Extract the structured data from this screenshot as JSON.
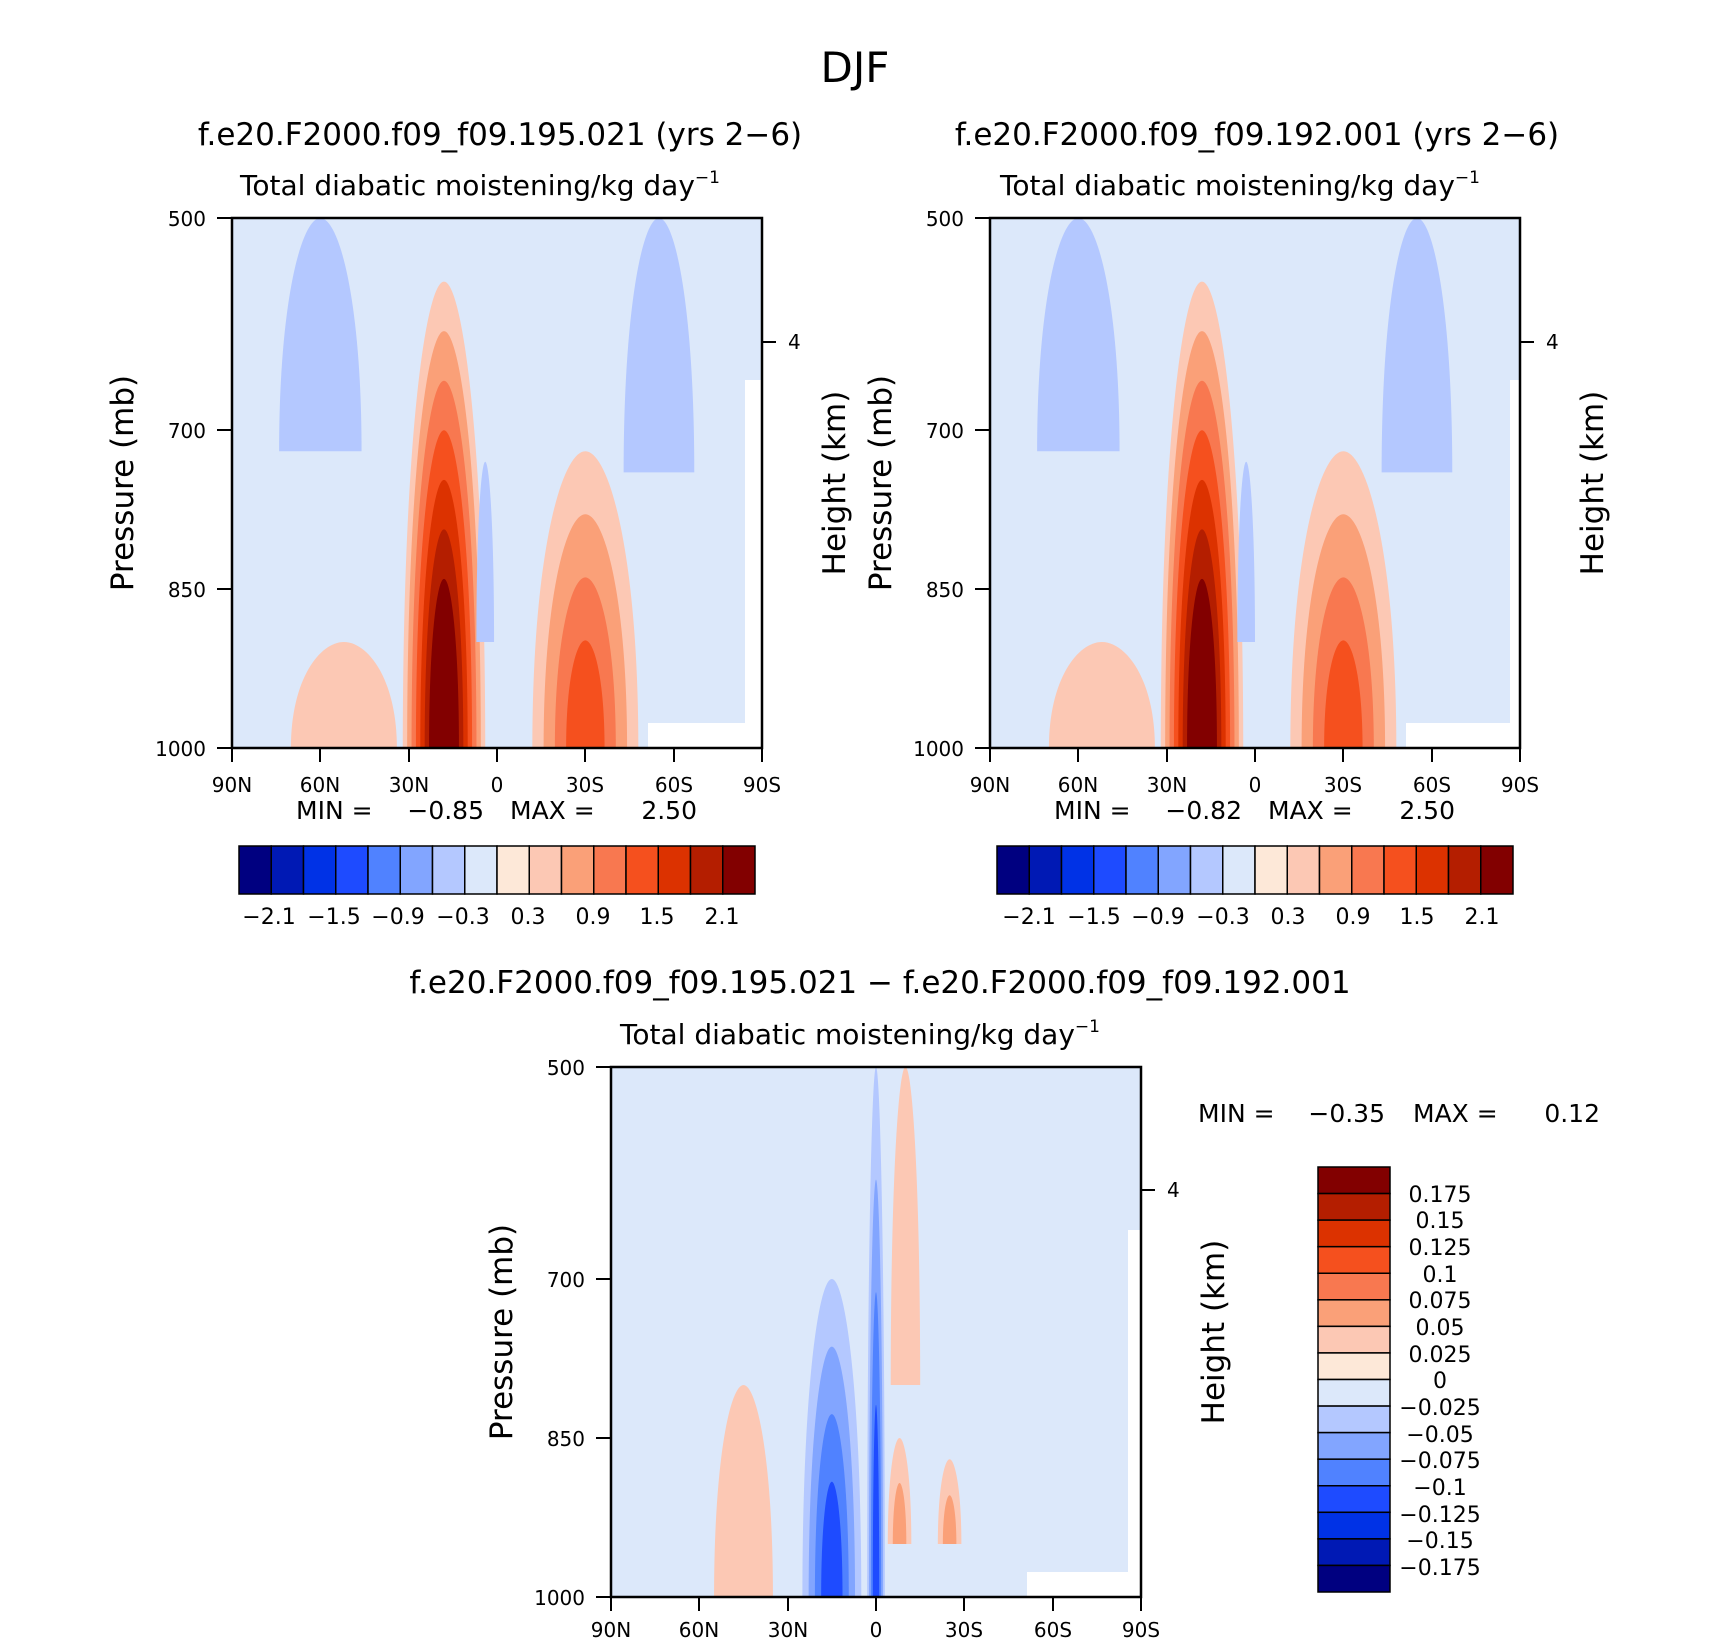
{
  "figure_title": "DJF",
  "minmax_labels": {
    "min": "MIN =",
    "max": "MAX ="
  },
  "chart_data": [
    {
      "type": "heatmap",
      "title": "f.e20.F2000.f09_f09.195.021 (yrs 2−6)",
      "subtitle": "Total diabatic moistening/kg day",
      "subtitle_sup": "−1",
      "xlabel": "",
      "ylabel": "Pressure (mb)",
      "ylabel_right": "Height (km)",
      "x_ticks": [
        "90N",
        "60N",
        "30N",
        "0",
        "30S",
        "60S",
        "90S"
      ],
      "y_ticks": [
        "500",
        "700",
        "850",
        "1000"
      ],
      "y_right_ticks": [
        "4"
      ],
      "ylim": [
        500,
        1000
      ],
      "min": "−0.85",
      "max": "2.50",
      "colorbar_labels": [
        "−2.1",
        "−1.5",
        "−0.9",
        "−0.3",
        "0.3",
        "0.9",
        "1.5",
        "2.1"
      ],
      "features": [
        {
          "lat": 18,
          "p_top": 560,
          "p_bottom": 1000,
          "width_deg": 14,
          "peak": 2.5
        },
        {
          "lat": -30,
          "p_top": 720,
          "p_bottom": 1000,
          "width_deg": 18,
          "peak": 1.3
        },
        {
          "lat": 52,
          "p_top": 900,
          "p_bottom": 1000,
          "width_deg": 18,
          "peak": 0.4
        },
        {
          "lat": 60,
          "p_top": 500,
          "p_bottom": 720,
          "width_deg": 14,
          "peak": -0.4
        },
        {
          "lat": -55,
          "p_top": 500,
          "p_bottom": 740,
          "width_deg": 12,
          "peak": -0.4
        },
        {
          "lat": 4,
          "p_top": 730,
          "p_bottom": 900,
          "width_deg": 3,
          "peak": -0.5
        }
      ]
    },
    {
      "type": "heatmap",
      "title": "f.e20.F2000.f09_f09.192.001 (yrs 2−6)",
      "subtitle": "Total diabatic moistening/kg day",
      "subtitle_sup": "−1",
      "xlabel": "",
      "ylabel": "Pressure (mb)",
      "ylabel_right": "Height (km)",
      "x_ticks": [
        "90N",
        "60N",
        "30N",
        "0",
        "30S",
        "60S",
        "90S"
      ],
      "y_ticks": [
        "500",
        "700",
        "850",
        "1000"
      ],
      "y_right_ticks": [
        "4"
      ],
      "ylim": [
        500,
        1000
      ],
      "min": "−0.82",
      "max": "2.50",
      "colorbar_labels": [
        "−2.1",
        "−1.5",
        "−0.9",
        "−0.3",
        "0.3",
        "0.9",
        "1.5",
        "2.1"
      ],
      "features": [
        {
          "lat": 18,
          "p_top": 560,
          "p_bottom": 1000,
          "width_deg": 14,
          "peak": 2.5
        },
        {
          "lat": -30,
          "p_top": 720,
          "p_bottom": 1000,
          "width_deg": 18,
          "peak": 1.2
        },
        {
          "lat": 52,
          "p_top": 900,
          "p_bottom": 1000,
          "width_deg": 18,
          "peak": 0.4
        },
        {
          "lat": 60,
          "p_top": 500,
          "p_bottom": 720,
          "width_deg": 14,
          "peak": -0.4
        },
        {
          "lat": -55,
          "p_top": 500,
          "p_bottom": 740,
          "width_deg": 12,
          "peak": -0.4
        },
        {
          "lat": 3,
          "p_top": 730,
          "p_bottom": 900,
          "width_deg": 3,
          "peak": -0.5
        }
      ]
    },
    {
      "type": "heatmap",
      "title": "f.e20.F2000.f09_f09.195.021 − f.e20.F2000.f09_f09.192.001",
      "subtitle": "Total diabatic moistening/kg day",
      "subtitle_sup": "−1",
      "xlabel": "",
      "ylabel": "Pressure (mb)",
      "ylabel_right": "Height (km)",
      "x_ticks": [
        "90N",
        "60N",
        "30N",
        "0",
        "30S",
        "60S",
        "90S"
      ],
      "y_ticks": [
        "500",
        "700",
        "850",
        "1000"
      ],
      "y_right_ticks": [
        "4"
      ],
      "ylim": [
        500,
        1000
      ],
      "min": "−0.35",
      "max": "0.12",
      "colorbar_labels": [
        "0.175",
        "0.15",
        "0.125",
        "0.1",
        "0.075",
        "0.05",
        "0.025",
        "0",
        "−0.025",
        "−0.05",
        "−0.075",
        "−0.1",
        "−0.125",
        "−0.15",
        "−0.175"
      ],
      "features": [
        {
          "lat": 0,
          "p_top": 500,
          "p_bottom": 1000,
          "width_deg": 3,
          "peak": -0.12
        },
        {
          "lat": 15,
          "p_top": 700,
          "p_bottom": 1000,
          "width_deg": 10,
          "peak": -0.1
        },
        {
          "lat": -8,
          "p_top": 850,
          "p_bottom": 950,
          "width_deg": 4,
          "peak": 0.06
        },
        {
          "lat": -25,
          "p_top": 870,
          "p_bottom": 950,
          "width_deg": 4,
          "peak": 0.06
        },
        {
          "lat": 45,
          "p_top": 800,
          "p_bottom": 1000,
          "width_deg": 10,
          "peak": 0.04
        },
        {
          "lat": 75,
          "p_top": 500,
          "p_bottom": 1000,
          "width_deg": 12,
          "peak": 0.02
        },
        {
          "lat": -70,
          "p_top": 500,
          "p_bottom": 1000,
          "width_deg": 12,
          "peak": 0.02
        },
        {
          "lat": -10,
          "p_top": 500,
          "p_bottom": 800,
          "width_deg": 5,
          "peak": 0.03
        }
      ]
    }
  ],
  "colors": {
    "full_scale": [
      "#000080",
      "#0019b4",
      "#0032e6",
      "#1e4bff",
      "#5082ff",
      "#82a5ff",
      "#b4c8ff",
      "#dce8fa",
      "#fde8d8",
      "#fcc8b4",
      "#faa078",
      "#f87850",
      "#f5501e",
      "#dc3200",
      "#b41e00",
      "#820000"
    ],
    "diff_scale": [
      "#820000",
      "#b41e00",
      "#dc3200",
      "#f5501e",
      "#f87850",
      "#faa078",
      "#fcc8b4",
      "#fde8d8",
      "#dce8fa",
      "#b4c8ff",
      "#82a5ff",
      "#5082ff",
      "#1e4bff",
      "#0032e6",
      "#0019b4",
      "#000080"
    ]
  }
}
